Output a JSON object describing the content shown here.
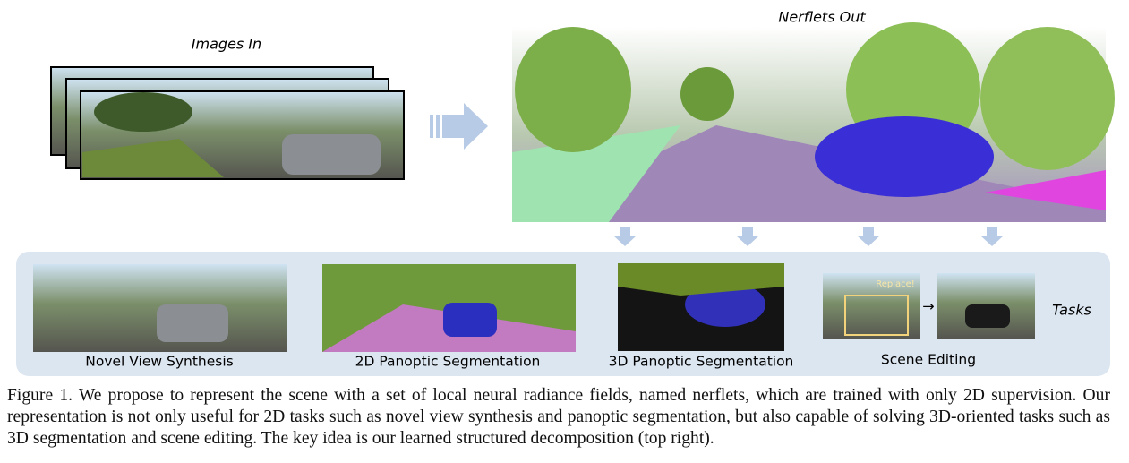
{
  "figure": {
    "images_in": "Images In",
    "nerflets_out": "Nerflets Out",
    "tasks": [
      {
        "label": "Novel View Synthesis"
      },
      {
        "label": "2D Panoptic Segmentation"
      },
      {
        "label": "3D Panoptic Segmentation"
      },
      {
        "label": "Scene Editing"
      }
    ],
    "replace_label": "Replace!",
    "tasks_label": "Tasks",
    "caption": "Figure 1.  We propose to represent the scene with a set of local neural radiance fields, named nerflets, which are trained with only 2D supervision. Our representation is not only useful for 2D tasks such as novel view synthesis and panoptic segmentation, but also capable of solving 3D-oriented tasks such as 3D segmentation and scene editing. The key idea is our learned structured decomposition (top right)."
  }
}
